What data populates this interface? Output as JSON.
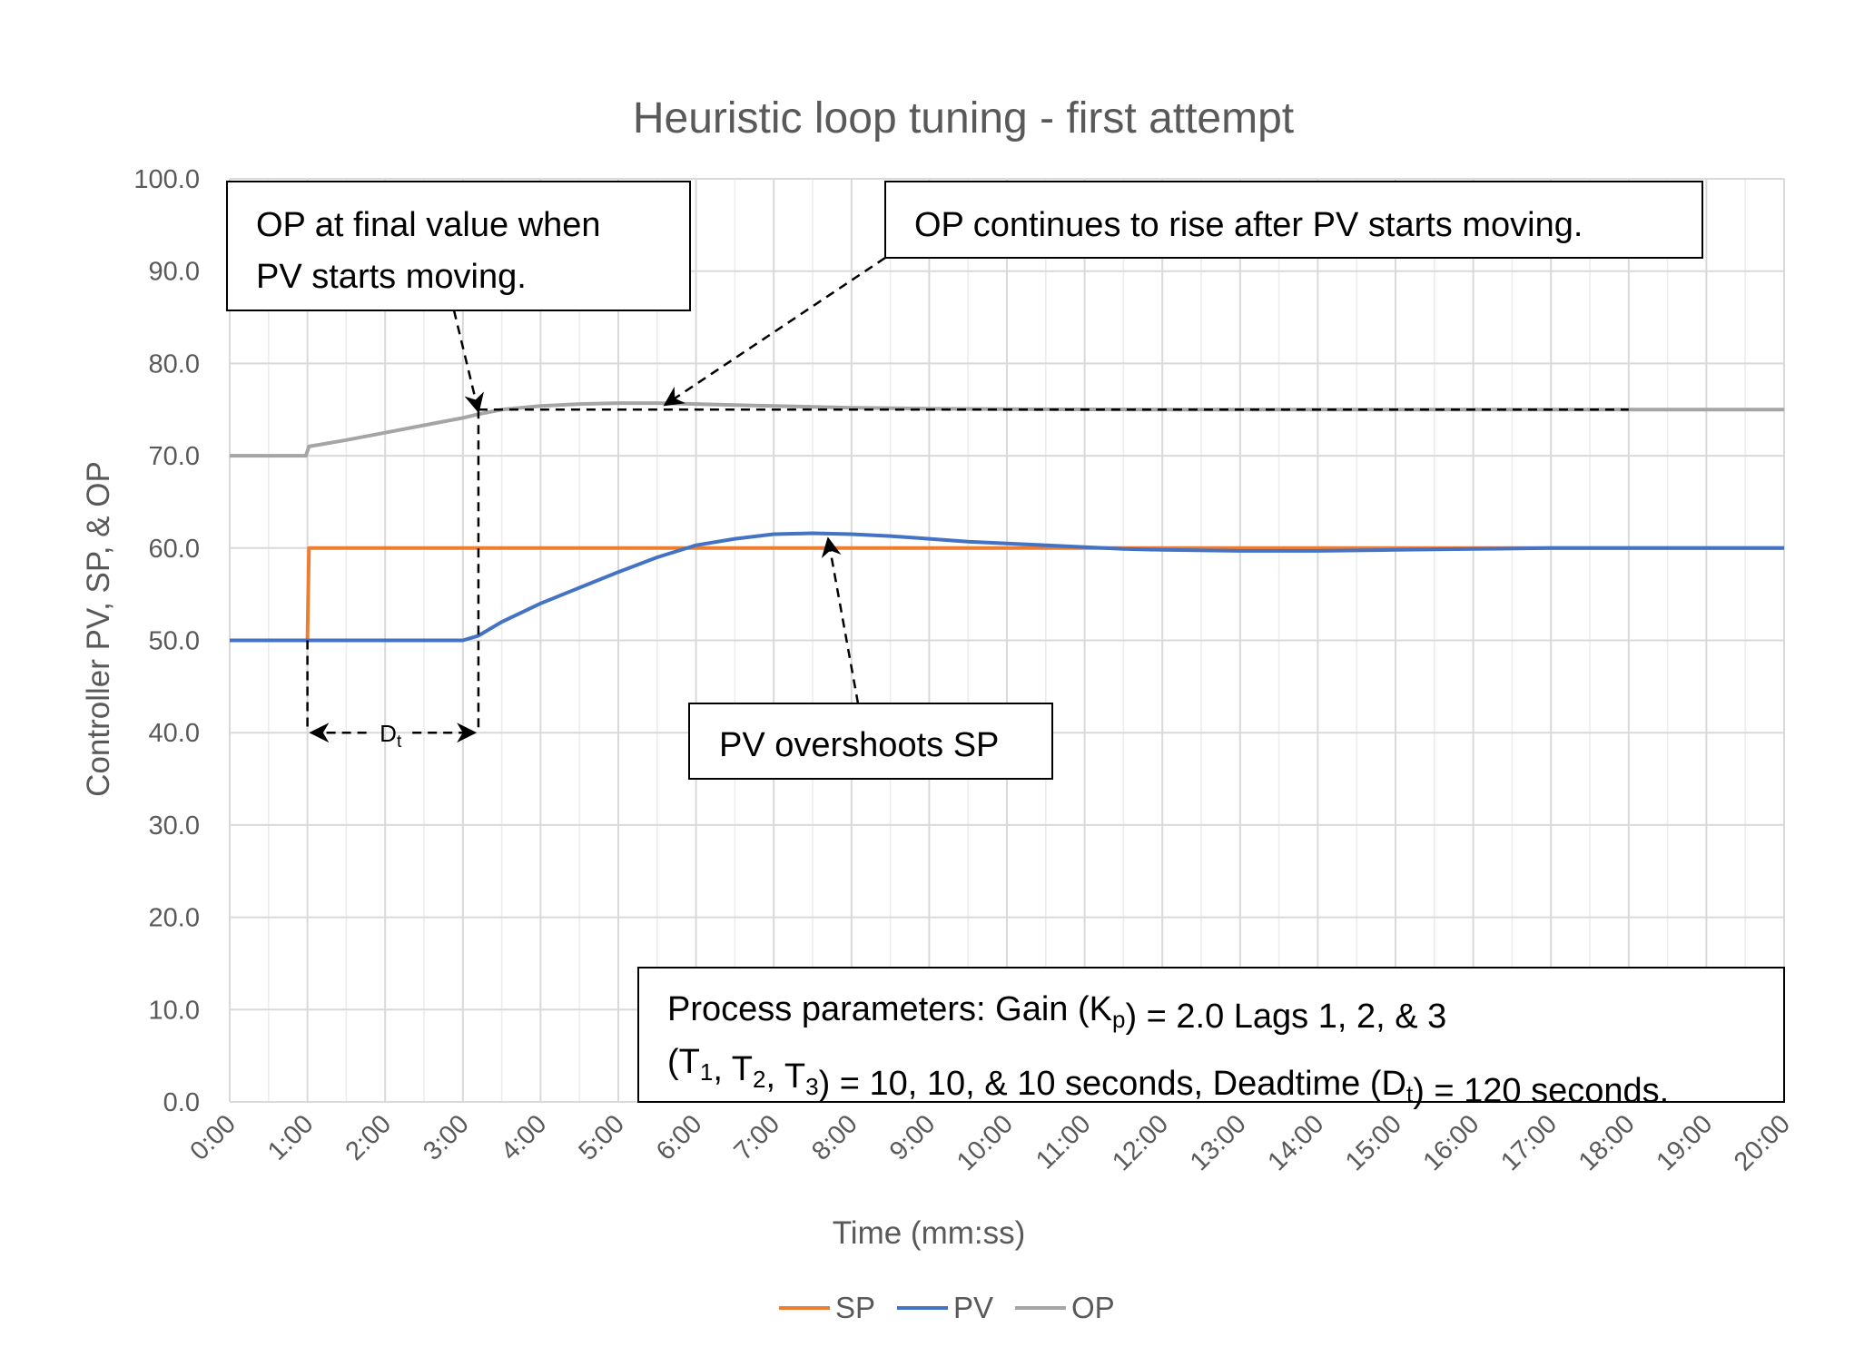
{
  "chart_data": {
    "type": "line",
    "title": "Heuristic loop tuning - first attempt",
    "xlabel": "Time (mm:ss)",
    "ylabel": "Controller PV, SP, & OP",
    "xlim": [
      0,
      20
    ],
    "ylim": [
      0,
      100
    ],
    "x_ticks": [
      "0:00",
      "1:00",
      "2:00",
      "3:00",
      "4:00",
      "5:00",
      "6:00",
      "7:00",
      "8:00",
      "9:00",
      "10:00",
      "11:00",
      "12:00",
      "13:00",
      "14:00",
      "15:00",
      "16:00",
      "17:00",
      "18:00",
      "19:00",
      "20:00"
    ],
    "y_ticks": [
      "0.0",
      "10.0",
      "20.0",
      "30.0",
      "40.0",
      "50.0",
      "60.0",
      "70.0",
      "80.0",
      "90.0",
      "100.0"
    ],
    "grid": true,
    "legend_position": "bottom",
    "series": [
      {
        "name": "SP",
        "color": "#ED7D31",
        "points": [
          [
            0,
            50
          ],
          [
            1,
            50
          ],
          [
            1.02,
            60
          ],
          [
            20,
            60
          ]
        ]
      },
      {
        "name": "PV",
        "color": "#4472C4",
        "points": [
          [
            0,
            50
          ],
          [
            3.0,
            50
          ],
          [
            3.2,
            50.5
          ],
          [
            3.5,
            52
          ],
          [
            4,
            54
          ],
          [
            4.5,
            55.7
          ],
          [
            5,
            57.4
          ],
          [
            5.5,
            59
          ],
          [
            6,
            60.3
          ],
          [
            6.5,
            61
          ],
          [
            7,
            61.5
          ],
          [
            7.5,
            61.6
          ],
          [
            8,
            61.5
          ],
          [
            8.5,
            61.3
          ],
          [
            9,
            61
          ],
          [
            9.5,
            60.7
          ],
          [
            10,
            60.5
          ],
          [
            10.5,
            60.3
          ],
          [
            11,
            60.1
          ],
          [
            11.5,
            59.9
          ],
          [
            12,
            59.8
          ],
          [
            13,
            59.7
          ],
          [
            14,
            59.7
          ],
          [
            15,
            59.8
          ],
          [
            16,
            59.9
          ],
          [
            17,
            60
          ],
          [
            18,
            60
          ],
          [
            20,
            60
          ]
        ]
      },
      {
        "name": "OP",
        "color": "#A5A5A5",
        "points": [
          [
            0,
            70
          ],
          [
            0.98,
            70
          ],
          [
            1.02,
            71
          ],
          [
            1.5,
            71.7
          ],
          [
            2,
            72.5
          ],
          [
            2.5,
            73.3
          ],
          [
            3.0,
            74.1
          ],
          [
            3.2,
            74.5
          ],
          [
            3.5,
            75
          ],
          [
            4,
            75.4
          ],
          [
            4.5,
            75.6
          ],
          [
            5,
            75.7
          ],
          [
            5.5,
            75.7
          ],
          [
            6,
            75.6
          ],
          [
            6.5,
            75.5
          ],
          [
            7,
            75.4
          ],
          [
            7.5,
            75.3
          ],
          [
            8,
            75.2
          ],
          [
            9,
            75.1
          ],
          [
            10,
            75.05
          ],
          [
            12,
            75
          ],
          [
            15,
            75
          ],
          [
            18,
            75
          ],
          [
            20,
            75
          ]
        ]
      }
    ],
    "annotations": [
      {
        "lines": [
          "OP at final value when",
          "PV starts moving."
        ],
        "points_to": [
          3.2,
          75
        ]
      },
      {
        "lines": [
          "OP continues to rise after PV starts moving."
        ],
        "points_to": [
          5.6,
          75.7
        ]
      },
      {
        "lines": [
          "PV overshoots SP"
        ],
        "points_to": [
          7.7,
          61.6
        ]
      },
      {
        "lines_rich": [
          [
            {
              "t": "Process parameters:  Gain (K"
            },
            {
              "t": "p",
              "sub": true
            },
            {
              "t": ") = 2.0 Lags 1, 2, & 3"
            }
          ],
          [
            {
              "t": "(T"
            },
            {
              "t": "1",
              "sub": true
            },
            {
              "t": ", T"
            },
            {
              "t": "2",
              "sub": true
            },
            {
              "t": ", T"
            },
            {
              "t": "3",
              "sub": true
            },
            {
              "t": ") = 10, 10, & 10 seconds, Deadtime (D"
            },
            {
              "t": "t",
              "sub": true
            },
            {
              "t": ") = 120 seconds."
            }
          ]
        ]
      }
    ],
    "deadtime_label": {
      "main": "D",
      "sub": "t",
      "from_x": 1,
      "to_x": 3.2,
      "y": 40
    }
  }
}
